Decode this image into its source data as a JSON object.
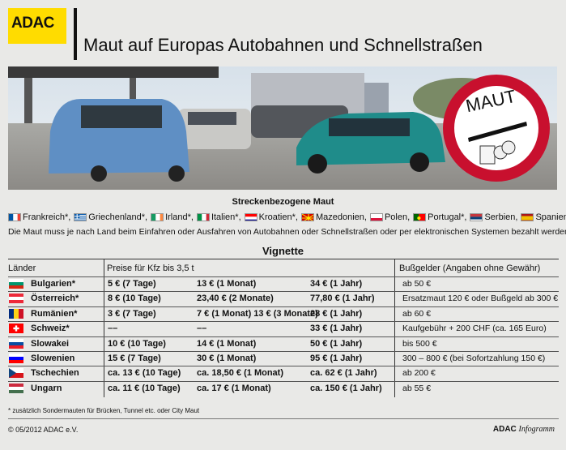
{
  "brand": "ADAC",
  "title": "Maut auf Europas Autobahnen und Schnellstraßen",
  "sign_text": "MAUT",
  "section1_title": "Streckenbezogene Maut",
  "toll_countries": [
    "Frankreich*,",
    "Griechenland*,",
    "Irland*,",
    "Italien*,",
    "Kroatien*,",
    "Mazedonien,",
    "Polen,",
    "Portugal*,",
    "Serbien,",
    "Spanien*"
  ],
  "note": "Die Maut muss je nach Land beim Einfahren oder Ausfahren von Autobahnen oder Schnellstraßen oder per elektronischen Systemen bezahlt werden.",
  "section2_title": "Vignette",
  "table": {
    "col_laender": "Länder",
    "col_preise": "Preise für Kfz bis 3,5 t",
    "col_bussgeld": "Bußgelder (Angaben ohne Gewähr)",
    "rows": [
      {
        "country": "Bulgarien*",
        "p1": "5 € (7 Tage)",
        "p2": "13 € (1 Monat)",
        "p3": "34 € (1 Jahr)",
        "fine": "ab 50 €"
      },
      {
        "country": "Österreich*",
        "p1": "8 € (10 Tage)",
        "p2": "23,40 € (2 Monate)",
        "p3": "77,80 € (1 Jahr)",
        "fine": "Ersatzmaut 120 € oder Bußgeld ab 300 €"
      },
      {
        "country": "Rumänien*",
        "p1": "3 € (7 Tage)",
        "p2": "7 € (1 Monat) 13 € (3 Monate)",
        "p3": "28 € (1 Jahr)",
        "fine": "ab 60 €"
      },
      {
        "country": "Schweiz*",
        "p1": "––",
        "p2": "––",
        "p3": "33 € (1 Jahr)",
        "fine": "Kaufgebühr + 200 CHF (ca. 165 Euro)"
      },
      {
        "country": "Slowakei",
        "p1": "10 € (10 Tage)",
        "p2": "14 € (1 Monat)",
        "p3": "50 € (1 Jahr)",
        "fine": "bis 500 €"
      },
      {
        "country": "Slowenien",
        "p1": "15 € (7 Tage)",
        "p2": "30 € (1 Monat)",
        "p3": "95 € (1 Jahr)",
        "fine": "300 – 800 € (bei Sofortzahlung 150 €)"
      },
      {
        "country": "Tschechien",
        "p1": "ca. 13 € (10 Tage)",
        "p2": "ca. 18,50 € (1 Monat)",
        "p3": "ca. 62 € (1 Jahr)",
        "fine": "ab 200 €"
      },
      {
        "country": "Ungarn",
        "p1": "ca. 11 € (10 Tage)",
        "p2": "ca. 17 € (1 Monat)",
        "p3": "ca. 150 € (1 Jahr)",
        "fine": "ab 55 €"
      }
    ]
  },
  "footnote": "* zusätzlich Sondermauten für Brücken, Tunnel etc. oder City Maut",
  "copyright": "© 05/2012 ADAC e.V.",
  "footer_brand": "ADAC",
  "footer_brand2": "Infogramm",
  "colors": {
    "yellow": "#ffdc00",
    "sign_red": "#c8102e"
  }
}
